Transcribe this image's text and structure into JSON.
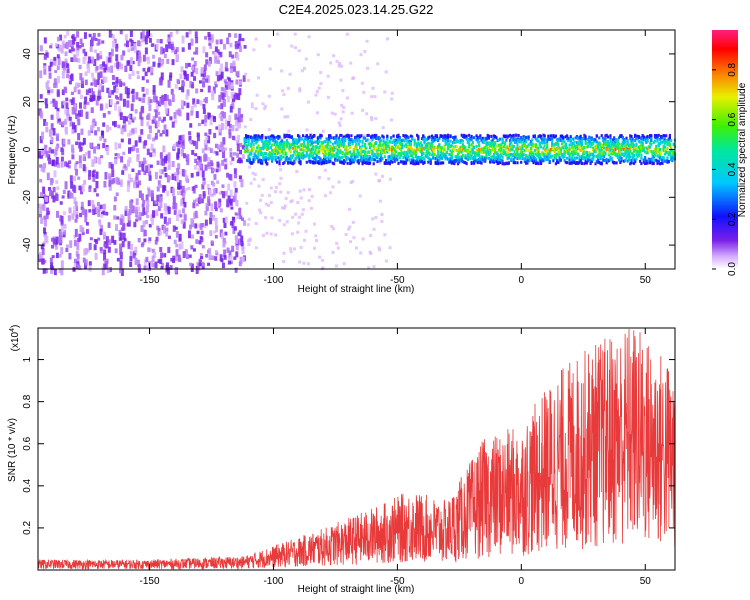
{
  "title": "C2E4.2025.023.14.25.G22",
  "colors": {
    "snr_line": "#e83a3a",
    "signal_band": "#1a2cf0",
    "scatter": "#7a2ff0"
  },
  "chart_data": [
    {
      "type": "heatmap",
      "name": "spectrogram",
      "xlabel": "Height of straight line (km)",
      "ylabel": "Frequency (Hz)",
      "xlim": [
        -195,
        62
      ],
      "ylim": [
        -50,
        50
      ],
      "xticks": [
        -150,
        -100,
        -50,
        0,
        50
      ],
      "yticks": [
        -40,
        -20,
        0,
        20,
        40
      ],
      "colorbar": {
        "label": "Normalized spectral amplitude",
        "range": [
          0,
          0.96
        ],
        "ticks": [
          0.0,
          0.2,
          0.4,
          0.6,
          0.8
        ],
        "colormap": "rainbow (white-purple-blue-cyan-green-yellow-red-magenta)"
      },
      "features": {
        "noise_region_km": [
          -195,
          -112
        ],
        "signal_start_km": -112,
        "signal_center_hz": 0,
        "signal_halfwidth_hz": 6
      }
    },
    {
      "type": "line",
      "name": "snr",
      "xlabel": "Height of straight line (km)",
      "ylabel": "SNR (10 * v/v)",
      "y_scale_label": "(x10",
      "y_scale_exp": "4",
      "xlim": [
        -195,
        62
      ],
      "ylim": [
        0,
        1.15
      ],
      "xticks": [
        -150,
        -100,
        -50,
        0,
        50
      ],
      "yticks": [
        0.2,
        0.4,
        0.6,
        0.8,
        1.0
      ],
      "envelope": {
        "x": [
          -195,
          -150,
          -112,
          -100,
          -80,
          -60,
          -45,
          -30,
          -15,
          0,
          15,
          30,
          45,
          55,
          62
        ],
        "y": [
          0.03,
          0.03,
          0.04,
          0.07,
          0.12,
          0.18,
          0.23,
          0.2,
          0.38,
          0.42,
          0.58,
          0.66,
          0.72,
          0.64,
          0.6
        ]
      }
    }
  ]
}
